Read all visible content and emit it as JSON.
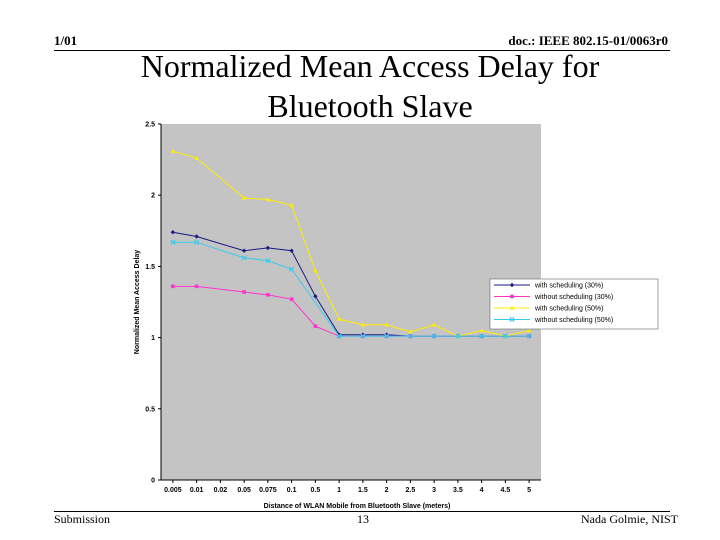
{
  "header": {
    "left": "1/01",
    "right": "doc.: IEEE 802.15-01/0063r0"
  },
  "title": "Normalized Mean Access Delay for\nBluetooth Slave",
  "footer": {
    "left": "Submission",
    "center": "13",
    "right": "Nada Golmie, NIST"
  },
  "chart_data": {
    "type": "line",
    "title": "",
    "xlabel": "Distance of WLAN Mobile from Bluetooth Slave (meters)",
    "ylabel": "Normalized Mean Access Delay",
    "categories": [
      "0.005",
      "0.01",
      "0.02",
      "0.05",
      "0.075",
      "0.1",
      "0.5",
      "1",
      "1.5",
      "2",
      "2.5",
      "3",
      "3.5",
      "4",
      "4.5",
      "5"
    ],
    "ylim": [
      0,
      2.5
    ],
    "yticks": [
      "0",
      "0.5",
      "1",
      "1.5",
      "2",
      "2.5"
    ],
    "grid": false,
    "legend_position": "right",
    "series": [
      {
        "name": "with scheduling (30%)",
        "color": "#1a1a80",
        "marker": "diamond",
        "values": [
          1.74,
          1.71,
          null,
          1.61,
          1.63,
          1.61,
          1.29,
          1.02,
          1.02,
          1.02,
          1.01,
          1.01,
          1.01,
          1.01,
          1.01,
          1.01
        ]
      },
      {
        "name": "without scheduling (30%)",
        "color": "#ff33cc",
        "marker": "square",
        "values": [
          1.36,
          1.36,
          null,
          1.32,
          1.3,
          1.27,
          1.08,
          1.01,
          1.01,
          1.01,
          1.01,
          1.01,
          1.01,
          1.01,
          1.01,
          1.01
        ]
      },
      {
        "name": "with scheduling (50%)",
        "color": "#ffee00",
        "marker": "triangle",
        "values": [
          2.31,
          2.26,
          null,
          1.98,
          1.97,
          1.93,
          1.47,
          1.13,
          1.09,
          1.09,
          1.04,
          1.09,
          1.01,
          1.05,
          1.01,
          1.05
        ]
      },
      {
        "name": "without scheduling (50%)",
        "color": "#33ccee",
        "marker": "x",
        "values": [
          1.67,
          1.67,
          null,
          1.56,
          1.54,
          1.48,
          null,
          1.01,
          1.01,
          1.01,
          1.01,
          1.01,
          1.01,
          1.01,
          1.01,
          1.01
        ]
      }
    ]
  }
}
